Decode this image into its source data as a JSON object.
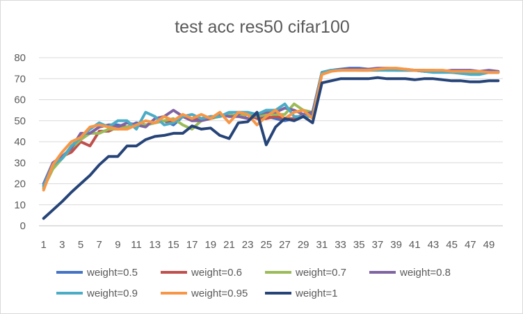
{
  "chart_data": {
    "type": "line",
    "title": "test acc res50 cifar100",
    "xlabel": "",
    "ylabel": "",
    "ylim": [
      0,
      80
    ],
    "yticks": [
      0,
      10,
      20,
      30,
      40,
      50,
      60,
      70,
      80
    ],
    "grid": "horizontal",
    "legend_position": "bottom",
    "x": [
      1,
      2,
      3,
      4,
      5,
      6,
      7,
      8,
      9,
      10,
      11,
      12,
      13,
      14,
      15,
      16,
      17,
      18,
      19,
      20,
      21,
      22,
      23,
      24,
      25,
      26,
      27,
      28,
      29,
      30,
      31,
      32,
      33,
      34,
      35,
      36,
      37,
      38,
      39,
      40,
      41,
      42,
      43,
      44,
      45,
      46,
      47,
      48,
      49,
      50
    ],
    "x_tick_labels": [
      "1",
      "3",
      "5",
      "7",
      "9",
      "11",
      "13",
      "15",
      "17",
      "19",
      "21",
      "23",
      "25",
      "27",
      "29",
      "31",
      "33",
      "35",
      "37",
      "39",
      "41",
      "43",
      "45",
      "47",
      "49"
    ],
    "series": [
      {
        "name": "weight=0.5",
        "color": "#4472c4",
        "values": [
          19,
          29,
          32,
          37,
          43,
          44,
          47,
          48,
          48,
          47,
          49,
          48,
          49,
          50,
          48,
          52,
          51,
          51,
          51,
          53,
          52,
          53,
          51,
          52,
          52,
          51,
          50,
          51,
          52,
          53,
          73,
          74,
          74.5,
          75,
          75,
          74.5,
          74,
          74.5,
          74,
          74,
          74,
          73.5,
          73.5,
          73.5,
          73,
          73.5,
          73,
          73,
          73.5,
          73
        ]
      },
      {
        "name": "weight=0.6",
        "color": "#c0504d",
        "values": [
          18,
          28,
          33,
          35,
          40,
          38,
          45,
          45,
          47,
          47,
          48,
          48,
          49,
          50,
          49,
          52,
          50,
          51,
          52,
          52,
          53,
          52,
          53,
          51,
          51,
          52,
          51,
          51,
          53,
          52,
          73,
          74,
          74,
          74.5,
          74,
          74,
          74.5,
          74,
          74,
          74,
          74,
          73.5,
          73.5,
          73.5,
          73.5,
          73,
          73,
          73,
          73,
          73
        ]
      },
      {
        "name": "weight=0.7",
        "color": "#9bbb59",
        "values": [
          18,
          27,
          32,
          37,
          41,
          44,
          44,
          46,
          46,
          47,
          48,
          48,
          49,
          50,
          51,
          48,
          46,
          50,
          51,
          52,
          53,
          52,
          53,
          52,
          53,
          53,
          53,
          58,
          55,
          54,
          73,
          74,
          74,
          74,
          74,
          74,
          74,
          74,
          74,
          74,
          74,
          74,
          74,
          73.5,
          73.5,
          73.5,
          73,
          73,
          73,
          73
        ]
      },
      {
        "name": "weight=0.8",
        "color": "#8064a2",
        "values": [
          20,
          30,
          33,
          37,
          44,
          44,
          47,
          48,
          47,
          49,
          48,
          47,
          51,
          52,
          55,
          52,
          50,
          50,
          51,
          53,
          52,
          52,
          51,
          53,
          54,
          54,
          56,
          55,
          53,
          54,
          73,
          74,
          74,
          74.5,
          74.5,
          74.5,
          75,
          75,
          74.5,
          74.5,
          74,
          74,
          73.5,
          73.5,
          74,
          74,
          74,
          73.5,
          74,
          73.5
        ]
      },
      {
        "name": "weight=0.9",
        "color": "#4bacc6",
        "values": [
          19,
          29,
          32,
          38,
          42,
          46,
          49,
          47,
          50,
          50,
          46,
          54,
          52,
          48,
          49,
          52,
          53,
          51,
          52,
          52,
          54,
          54,
          54,
          53,
          55,
          55,
          58,
          52,
          52,
          52,
          73,
          74,
          74,
          74,
          74,
          74,
          74,
          74,
          74,
          74,
          74,
          73.5,
          73,
          73,
          73,
          72.5,
          72,
          72,
          73,
          73
        ]
      },
      {
        "name": "weight=0.95",
        "color": "#f79646",
        "values": [
          17,
          29,
          35,
          40,
          42,
          47,
          48,
          47,
          46,
          46,
          48,
          50,
          49,
          52,
          50,
          53,
          51,
          53,
          51,
          54,
          49,
          54,
          53,
          48,
          52,
          55,
          51,
          54,
          55,
          51,
          72,
          73.5,
          74,
          74,
          74,
          74,
          74.5,
          75,
          75,
          74.5,
          74,
          74,
          74,
          74,
          73.5,
          73.5,
          73.5,
          73.5,
          73,
          73
        ]
      },
      {
        "name": "weight=1",
        "color": "#264478",
        "values": [
          3.5,
          7.5,
          11.5,
          16,
          20,
          24,
          29,
          33,
          33,
          38,
          38,
          41,
          42.5,
          43,
          44,
          44,
          47.5,
          46,
          46.5,
          43,
          41.5,
          49,
          49.5,
          54,
          38.5,
          47,
          51,
          50,
          52,
          49,
          68,
          69,
          70,
          70,
          70,
          70,
          70.5,
          70,
          70,
          70,
          69.5,
          70,
          70,
          69.5,
          69,
          69,
          68.5,
          68.5,
          69,
          69
        ]
      }
    ]
  }
}
